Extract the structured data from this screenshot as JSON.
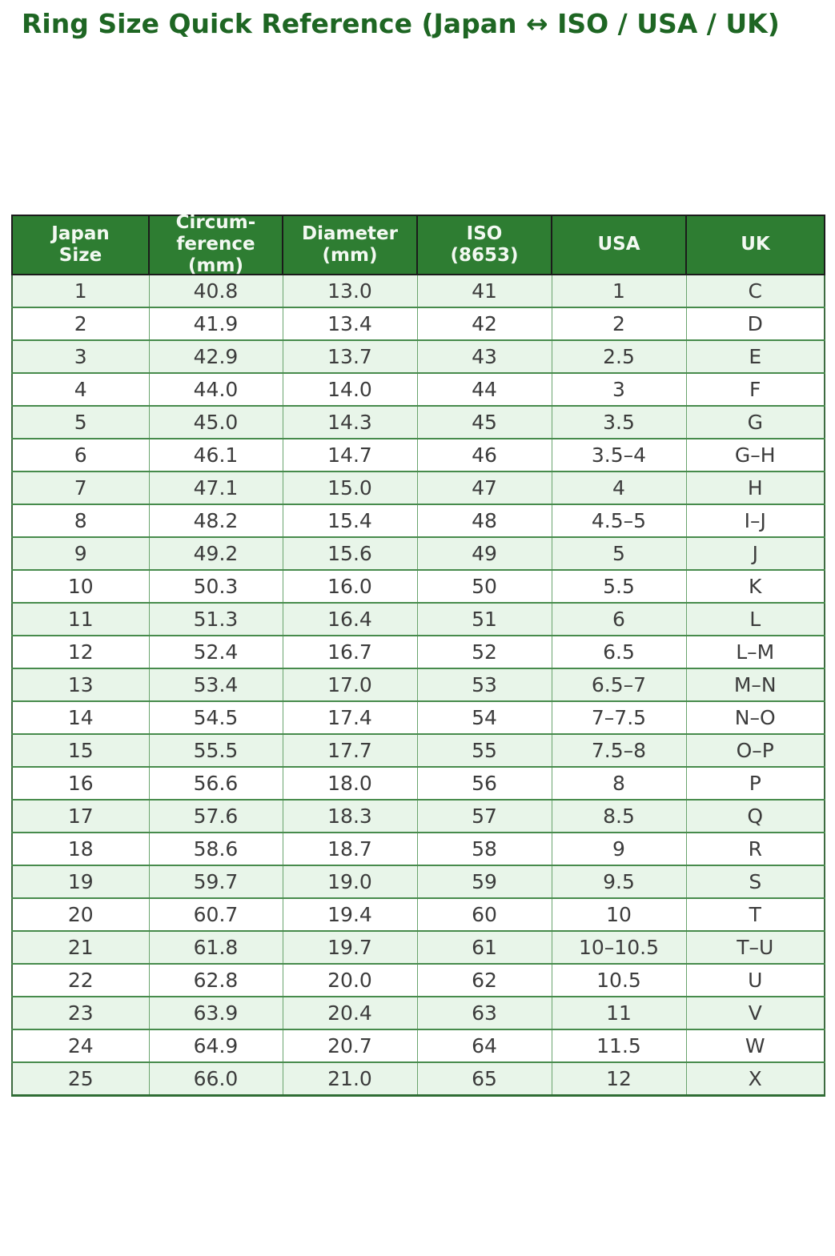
{
  "title": "Ring Size Quick Reference (Japan ↔ ISO / USA / UK)",
  "colors": {
    "title_text": "#1e6623",
    "header_background": "#2e7d32",
    "header_text": "#f3f9f2",
    "row_alternate": "#e8f5e9",
    "row_plain": "#ffffff",
    "cell_text": "#3c3c3c",
    "header_border": "#1b1b1b",
    "grid_line": "#478b4c"
  },
  "chart_data": {
    "type": "table",
    "title": "Ring Size Quick Reference (Japan ↔ ISO / USA / UK)",
    "columns": [
      "Japan\nSize",
      "Circum-\nference\n(mm)",
      "Diameter\n(mm)",
      "ISO\n(8653)",
      "USA",
      "UK"
    ],
    "rows": [
      [
        "1",
        "40.8",
        "13.0",
        "41",
        "1",
        "C"
      ],
      [
        "2",
        "41.9",
        "13.4",
        "42",
        "2",
        "D"
      ],
      [
        "3",
        "42.9",
        "13.7",
        "43",
        "2.5",
        "E"
      ],
      [
        "4",
        "44.0",
        "14.0",
        "44",
        "3",
        "F"
      ],
      [
        "5",
        "45.0",
        "14.3",
        "45",
        "3.5",
        "G"
      ],
      [
        "6",
        "46.1",
        "14.7",
        "46",
        "3.5–4",
        "G–H"
      ],
      [
        "7",
        "47.1",
        "15.0",
        "47",
        "4",
        "H"
      ],
      [
        "8",
        "48.2",
        "15.4",
        "48",
        "4.5–5",
        "I–J"
      ],
      [
        "9",
        "49.2",
        "15.6",
        "49",
        "5",
        "J"
      ],
      [
        "10",
        "50.3",
        "16.0",
        "50",
        "5.5",
        "K"
      ],
      [
        "11",
        "51.3",
        "16.4",
        "51",
        "6",
        "L"
      ],
      [
        "12",
        "52.4",
        "16.7",
        "52",
        "6.5",
        "L–M"
      ],
      [
        "13",
        "53.4",
        "17.0",
        "53",
        "6.5–7",
        "M–N"
      ],
      [
        "14",
        "54.5",
        "17.4",
        "54",
        "7–7.5",
        "N–O"
      ],
      [
        "15",
        "55.5",
        "17.7",
        "55",
        "7.5–8",
        "O–P"
      ],
      [
        "16",
        "56.6",
        "18.0",
        "56",
        "8",
        "P"
      ],
      [
        "17",
        "57.6",
        "18.3",
        "57",
        "8.5",
        "Q"
      ],
      [
        "18",
        "58.6",
        "18.7",
        "58",
        "9",
        "R"
      ],
      [
        "19",
        "59.7",
        "19.0",
        "59",
        "9.5",
        "S"
      ],
      [
        "20",
        "60.7",
        "19.4",
        "60",
        "10",
        "T"
      ],
      [
        "21",
        "61.8",
        "19.7",
        "61",
        "10–10.5",
        "T–U"
      ],
      [
        "22",
        "62.8",
        "20.0",
        "62",
        "10.5",
        "U"
      ],
      [
        "23",
        "63.9",
        "20.4",
        "63",
        "11",
        "V"
      ],
      [
        "24",
        "64.9",
        "20.7",
        "64",
        "11.5",
        "W"
      ],
      [
        "25",
        "66.0",
        "21.0",
        "65",
        "12",
        "X"
      ]
    ]
  }
}
